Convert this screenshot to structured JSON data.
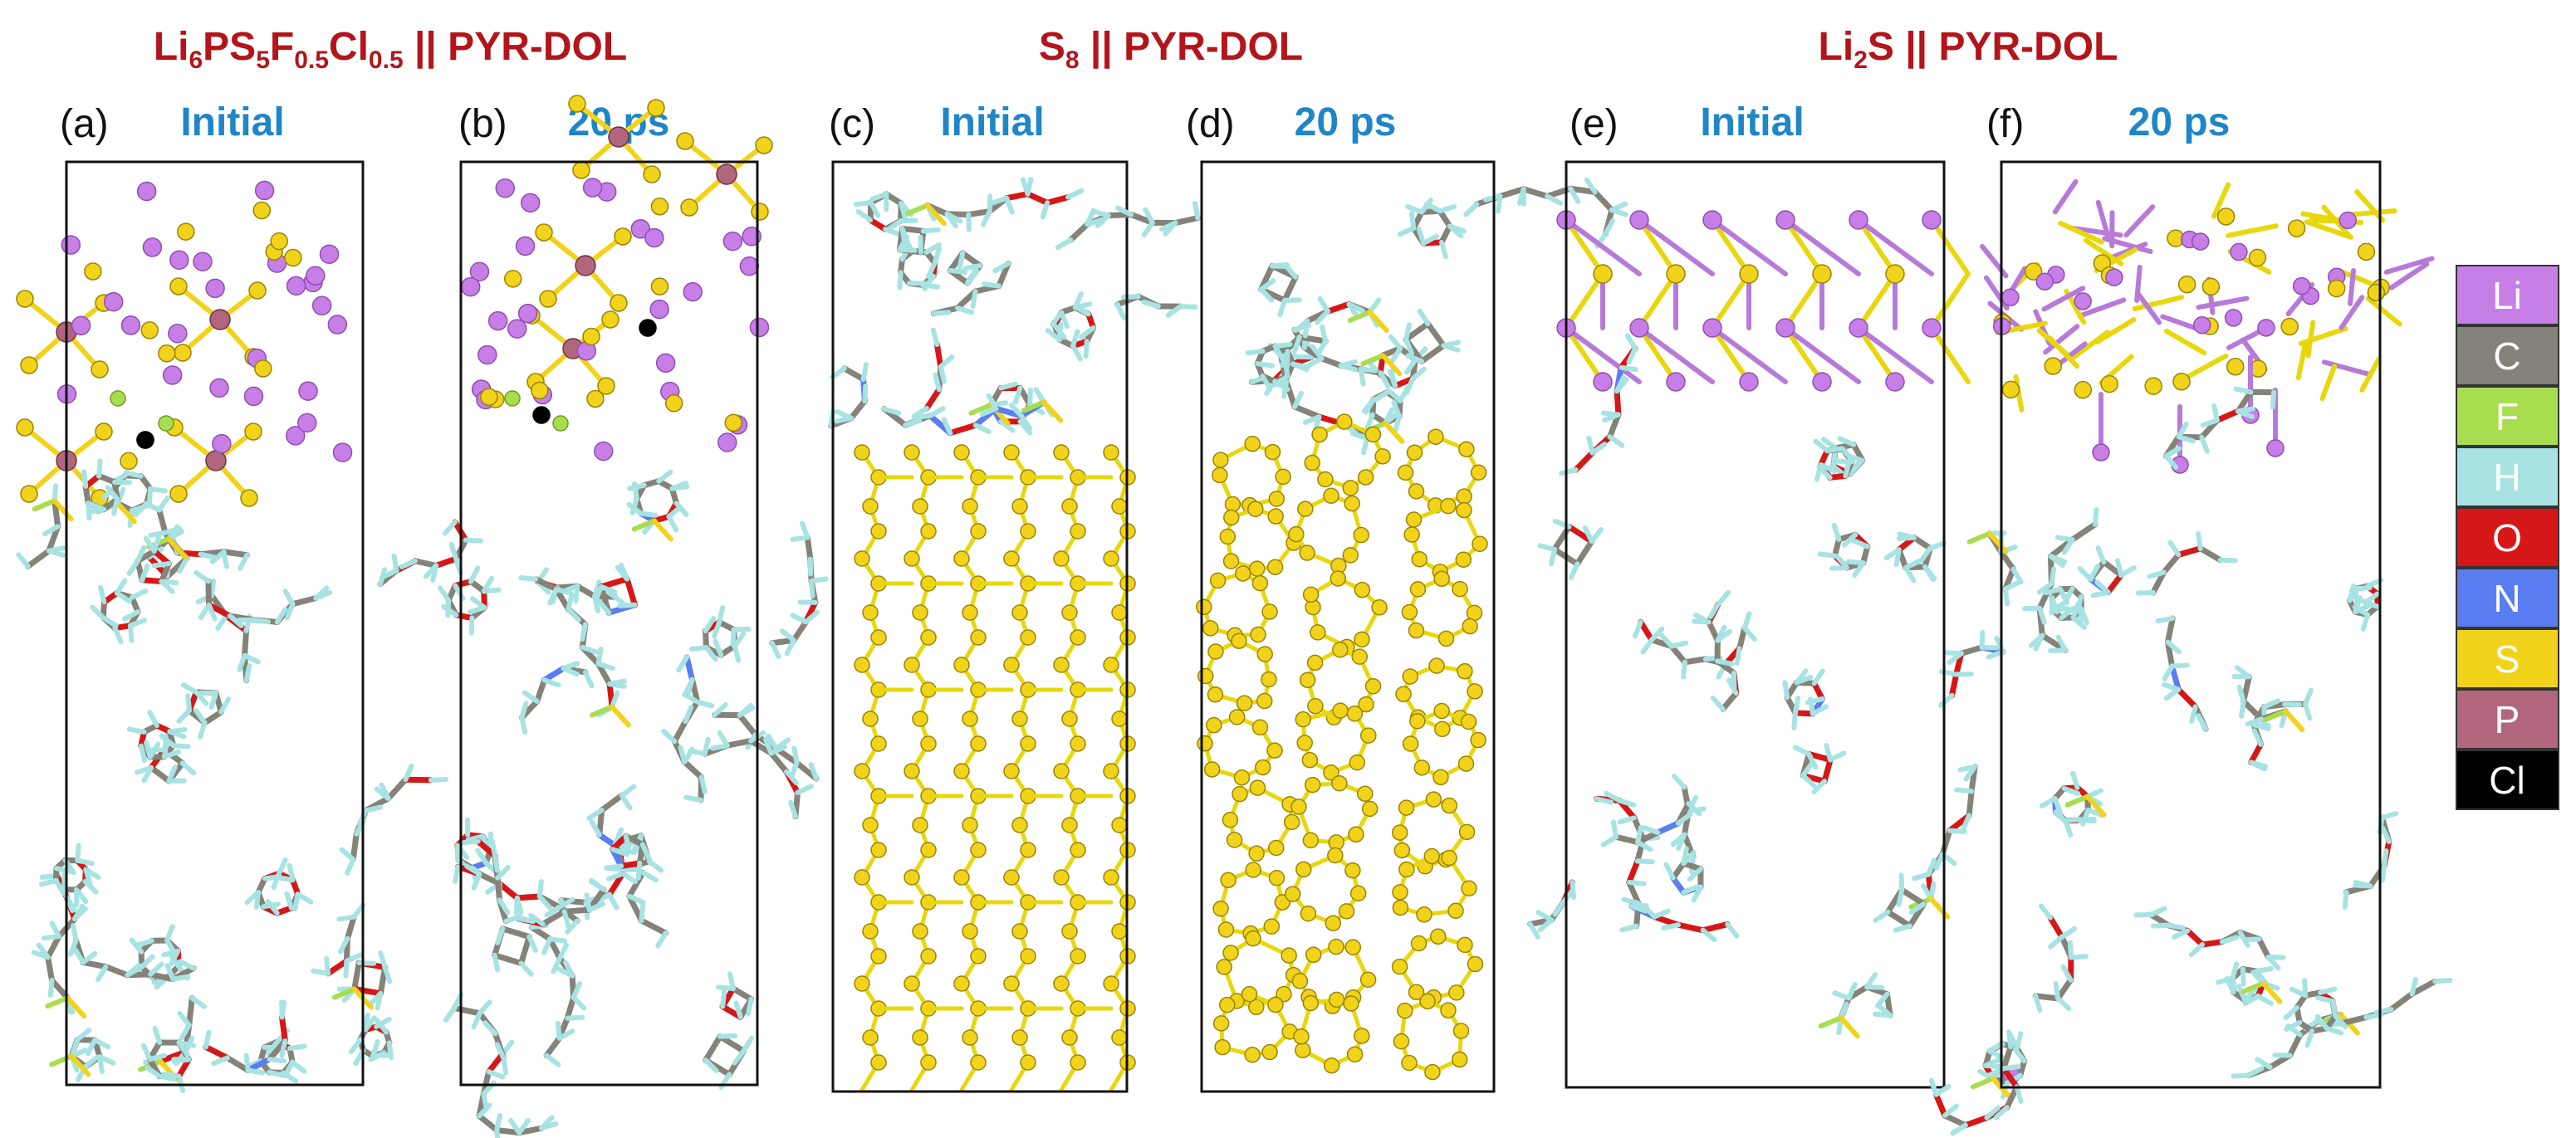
{
  "groups": [
    {
      "id": "lpsfc",
      "title_parts": [
        {
          "t": "Li",
          "sub": false
        },
        {
          "t": "6",
          "sub": true
        },
        {
          "t": "PS",
          "sub": false
        },
        {
          "t": "5",
          "sub": true
        },
        {
          "t": "F",
          "sub": false
        },
        {
          "t": "0.5",
          "sub": true
        },
        {
          "t": "Cl",
          "sub": false
        },
        {
          "t": "0.5",
          "sub": true
        },
        {
          "t": "  ||  PYR-DOL",
          "sub": false
        }
      ]
    },
    {
      "id": "s8",
      "title_parts": [
        {
          "t": "S",
          "sub": false
        },
        {
          "t": "8",
          "sub": true
        },
        {
          "t": "  || PYR-DOL",
          "sub": false
        }
      ]
    },
    {
      "id": "li2s",
      "title_parts": [
        {
          "t": "Li",
          "sub": false
        },
        {
          "t": "2",
          "sub": true
        },
        {
          "t": "S  || PYR-DOL",
          "sub": false
        }
      ]
    }
  ],
  "panels": [
    {
      "id": "a",
      "letter": "(a)",
      "state": "Initial",
      "slab": "lpsfc-initial"
    },
    {
      "id": "b",
      "letter": "(b)",
      "state": "20 ps",
      "slab": "lpsfc-20ps"
    },
    {
      "id": "c",
      "letter": "(c)",
      "state": "Initial",
      "slab": "s8-initial"
    },
    {
      "id": "d",
      "letter": "(d)",
      "state": "20 ps",
      "slab": "s8-20ps"
    },
    {
      "id": "e",
      "letter": "(e)",
      "state": "Initial",
      "slab": "li2s-initial"
    },
    {
      "id": "f",
      "letter": "(f)",
      "state": "20 ps",
      "slab": "li2s-20ps"
    }
  ],
  "legend": [
    {
      "symbol": "Li",
      "color": "#c77ee6"
    },
    {
      "symbol": "C",
      "color": "#858379"
    },
    {
      "symbol": "F",
      "color": "#a9dd50"
    },
    {
      "symbol": "H",
      "color": "#a8e3e3"
    },
    {
      "symbol": "O",
      "color": "#d61717"
    },
    {
      "symbol": "N",
      "color": "#5b7df2"
    },
    {
      "symbol": "S",
      "color": "#f2d31b"
    },
    {
      "symbol": "P",
      "color": "#b0677e"
    },
    {
      "symbol": "Cl",
      "color": "#000000"
    }
  ]
}
